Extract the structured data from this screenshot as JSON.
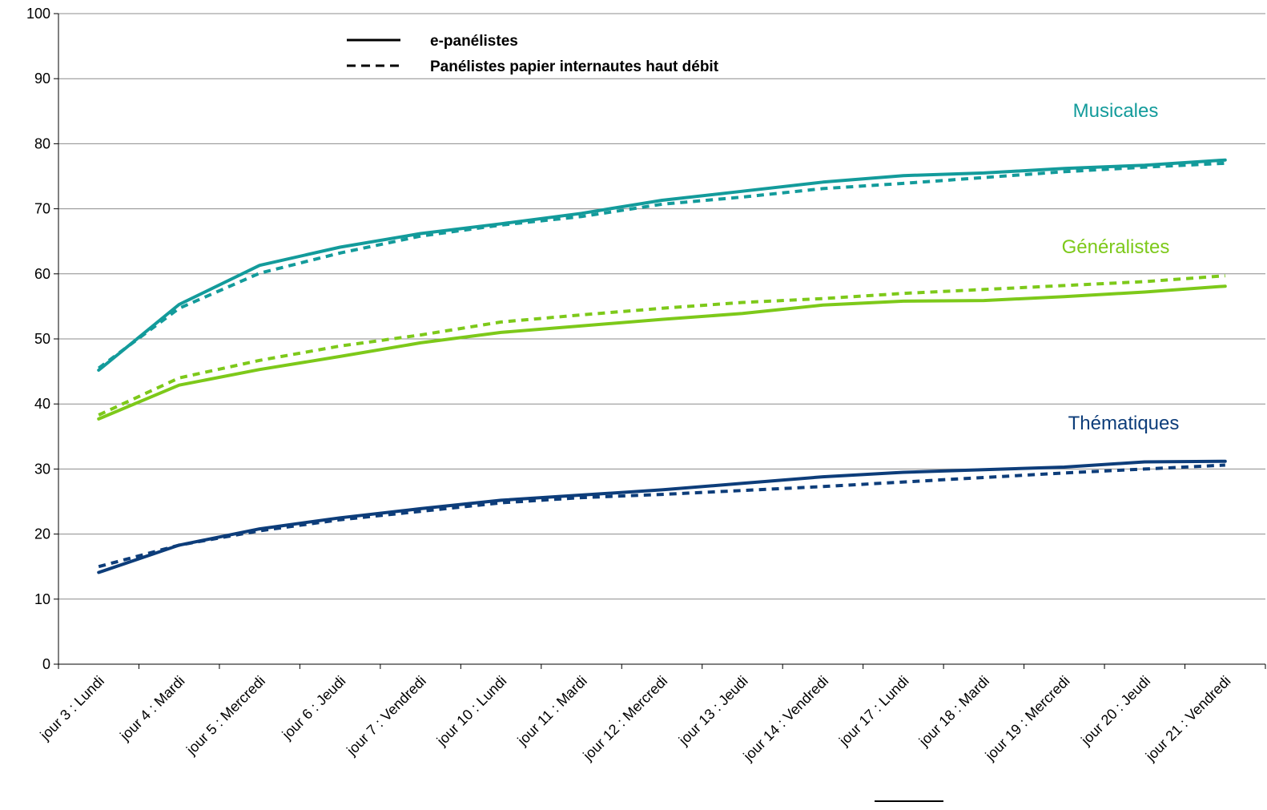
{
  "chart_data": {
    "type": "line",
    "title": "",
    "xlabel": "",
    "ylabel": "",
    "ylim": [
      0,
      100
    ],
    "yticks": [
      0,
      10,
      20,
      30,
      40,
      50,
      60,
      70,
      80,
      90,
      100
    ],
    "grid": "horizontal",
    "categories": [
      "jour 3 : Lundi",
      "jour 4 : Mardi",
      "jour 5 : Mercredi",
      "jour 6 : Jeudi",
      "jour 7 : Vendredi",
      "jour 10 : Lundi",
      "jour 11 : Mardi",
      "jour 12 : Mercredi",
      "jour 13 : Jeudi",
      "jour 14 : Vendredi",
      "jour 17 : Lundi",
      "jour 18 : Mardi",
      "jour 19 : Mercredi",
      "jour 20 : Jeudi",
      "jour 21 : Vendredi"
    ],
    "legend": {
      "position": "top-center",
      "entries": [
        {
          "label": "e-panélistes",
          "style": "solid"
        },
        {
          "label": "Panélistes papier internautes haut débit",
          "style": "dashed"
        }
      ]
    },
    "groups": [
      {
        "name": "Musicales",
        "color": "#139b9b"
      },
      {
        "name": "Généralistes",
        "color": "#7dc91a"
      },
      {
        "name": "Thématiques",
        "color": "#0d3d7a"
      }
    ],
    "series": [
      {
        "group": "Musicales",
        "style": "solid",
        "values": [
          45.2,
          55.3,
          61.3,
          64.1,
          66.2,
          67.7,
          69.3,
          71.3,
          72.7,
          74.1,
          75.1,
          75.5,
          76.2,
          76.7,
          77.5
        ]
      },
      {
        "group": "Musicales",
        "style": "dashed",
        "values": [
          45.5,
          54.7,
          60.1,
          63.2,
          65.8,
          67.5,
          68.8,
          70.7,
          71.8,
          73.1,
          73.9,
          74.8,
          75.7,
          76.4,
          77.0
        ]
      },
      {
        "group": "Généralistes",
        "style": "solid",
        "values": [
          37.7,
          42.9,
          45.3,
          47.3,
          49.4,
          51.0,
          52.0,
          53.0,
          53.9,
          55.2,
          55.8,
          55.9,
          56.5,
          57.2,
          58.1
        ]
      },
      {
        "group": "Généralistes",
        "style": "dashed",
        "values": [
          38.3,
          44.0,
          46.7,
          48.9,
          50.6,
          52.6,
          53.7,
          54.7,
          55.6,
          56.2,
          57.0,
          57.6,
          58.2,
          58.8,
          59.7
        ]
      },
      {
        "group": "Thématiques",
        "style": "solid",
        "values": [
          14.1,
          18.3,
          20.8,
          22.5,
          23.9,
          25.2,
          26.0,
          26.8,
          27.8,
          28.8,
          29.5,
          29.9,
          30.3,
          31.1,
          31.2
        ]
      },
      {
        "group": "Thématiques",
        "style": "dashed",
        "values": [
          15.0,
          18.3,
          20.5,
          22.2,
          23.5,
          24.8,
          25.6,
          26.1,
          26.7,
          27.3,
          28.0,
          28.7,
          29.4,
          30.0,
          30.6
        ]
      }
    ]
  }
}
